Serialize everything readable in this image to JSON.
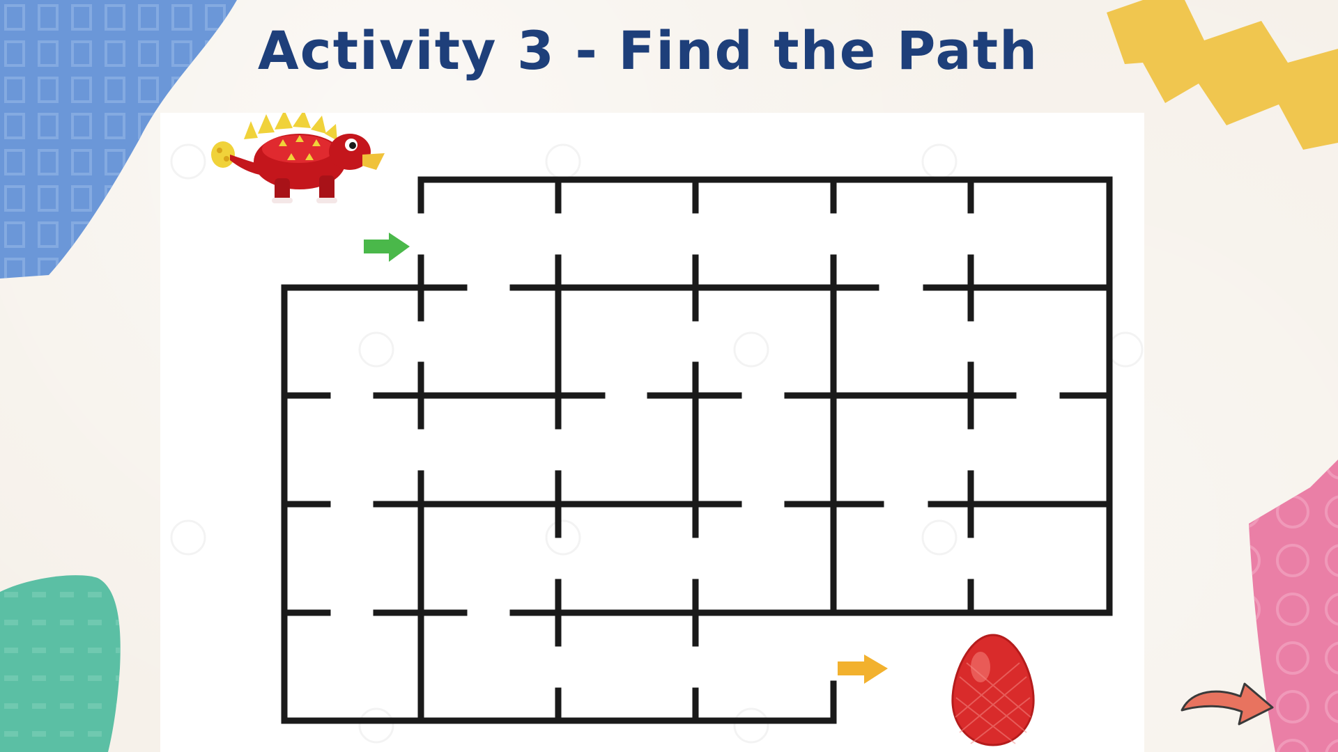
{
  "slide": {
    "title": "Activity 3 - Find the Path"
  },
  "maze": {
    "start_icon": "dinosaur-icon",
    "start_arrow_icon": "green-arrow-icon",
    "end_arrow_icon": "orange-arrow-icon",
    "goal_icon": "red-egg-icon"
  },
  "navigation": {
    "next_icon": "curved-arrow-icon"
  },
  "colors": {
    "title": "#1e3f7a",
    "maze_walls": "#1a1a1a",
    "start_arrow": "#4ab84a",
    "end_arrow": "#f2b12e",
    "egg": "#d92b2b",
    "dinosaur": "#c4161c",
    "blue_shape": "#6b97d8",
    "yellow_shape": "#f0c64f",
    "teal_shape": "#5bbfa4",
    "pink_shape": "#ea7fa6",
    "next_arrow": "#e8735f"
  }
}
